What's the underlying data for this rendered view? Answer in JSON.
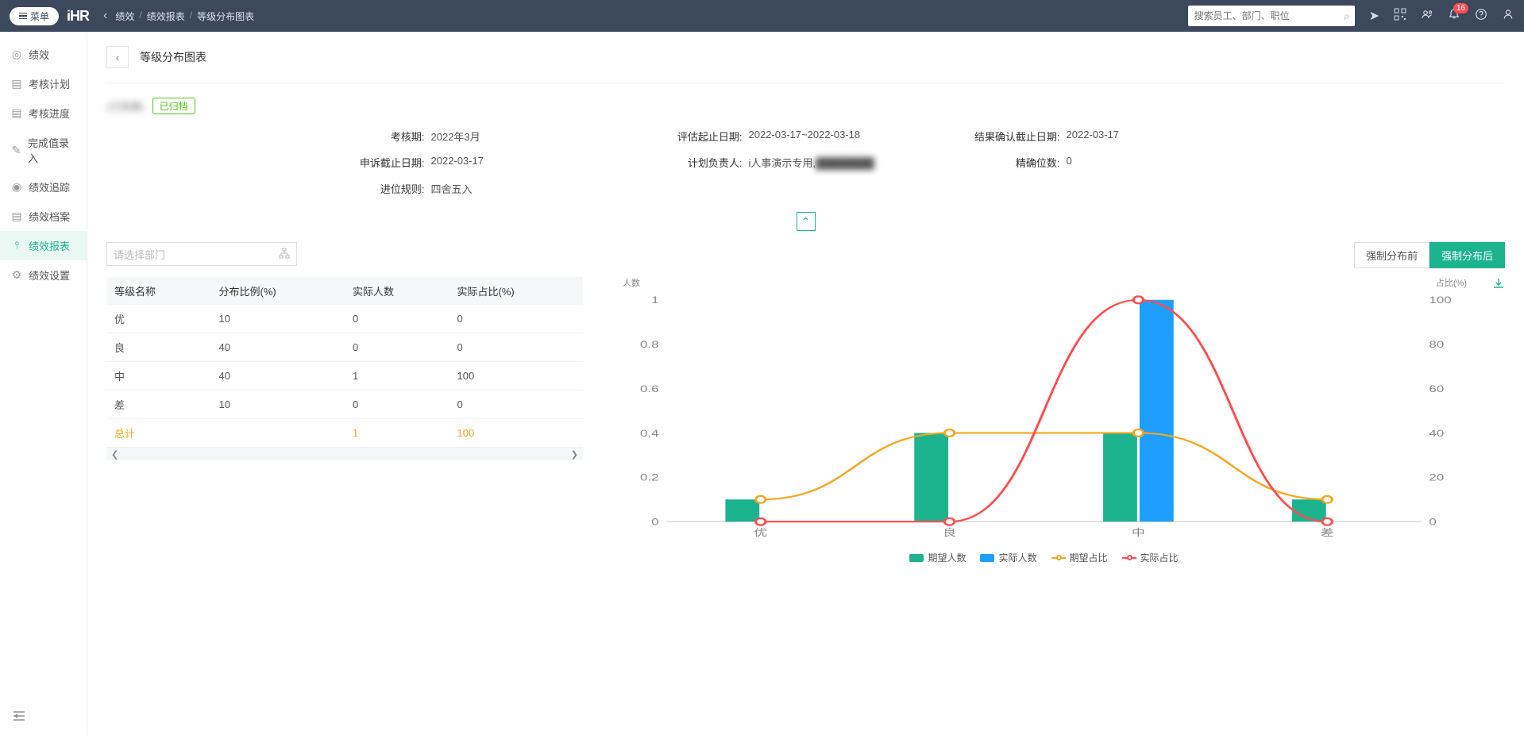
{
  "header": {
    "menu_label": "菜单",
    "logo": "iHR",
    "breadcrumb": [
      "绩效",
      "绩效报表",
      "等级分布图表"
    ],
    "search_placeholder": "搜索员工、部门、职位",
    "notif_badge": "16"
  },
  "sidebar": {
    "items": [
      {
        "icon": "◎",
        "label": "绩效"
      },
      {
        "icon": "▤",
        "label": "考核计划"
      },
      {
        "icon": "▤",
        "label": "考核进度"
      },
      {
        "icon": "✎",
        "label": "完成值录入"
      },
      {
        "icon": "◉",
        "label": "绩效追踪"
      },
      {
        "icon": "▤",
        "label": "绩效档案"
      },
      {
        "icon": "⫯",
        "label": "绩效报表"
      },
      {
        "icon": "⚙",
        "label": "绩效设置"
      }
    ],
    "active_index": 6
  },
  "page": {
    "title": "等级分布图表",
    "plan_name": "(已隐藏)",
    "archived_badge": "已归档"
  },
  "info": {
    "assess_period_label": "考核期:",
    "assess_period": "2022年3月",
    "eval_range_label": "评估起止日期:",
    "eval_range": "2022-03-17~2022-03-18",
    "confirm_deadline_label": "结果确认截止日期:",
    "confirm_deadline": "2022-03-17",
    "appeal_deadline_label": "申诉截止日期:",
    "appeal_deadline": "2022-03-17",
    "owner_label": "计划负责人:",
    "owner": "i人事演示专用,",
    "precision_label": "精确位数:",
    "precision": "0",
    "rounding_label": "进位规则:",
    "rounding": "四舍五入"
  },
  "dept_select_placeholder": "请选择部门",
  "table": {
    "headers": [
      "等级名称",
      "分布比例(%)",
      "实际人数",
      "实际占比(%)"
    ],
    "rows": [
      [
        "优",
        "10",
        "0",
        "0"
      ],
      [
        "良",
        "40",
        "0",
        "0"
      ],
      [
        "中",
        "40",
        "1",
        "100"
      ],
      [
        "差",
        "10",
        "0",
        "0"
      ]
    ],
    "total_row": [
      "总计",
      "",
      "1",
      "100"
    ]
  },
  "dist_buttons": {
    "before": "强制分布前",
    "after": "强制分布后"
  },
  "chart": {
    "y_left_label": "人数",
    "y_right_label": "占比(%)",
    "categories": [
      "优",
      "良",
      "中",
      "差"
    ],
    "y_left": {
      "min": 0,
      "max": 1,
      "ticks": [
        0,
        0.2,
        0.4,
        0.6,
        0.8,
        1
      ]
    },
    "y_right": {
      "min": 0,
      "max": 100,
      "ticks": [
        0,
        20,
        40,
        60,
        80,
        100
      ]
    },
    "series": {
      "expected_count": {
        "label": "期望人数",
        "color": "#1bb48f",
        "type": "bar",
        "values": [
          0.1,
          0.4,
          0.4,
          0.1
        ]
      },
      "actual_count": {
        "label": "实际人数",
        "color": "#1e9fff",
        "type": "bar",
        "values": [
          0,
          0,
          1,
          0
        ]
      },
      "expected_pct": {
        "label": "期望占比",
        "color": "#f5a623",
        "type": "line",
        "values": [
          10,
          40,
          40,
          10
        ]
      },
      "actual_pct": {
        "label": "实际占比",
        "color": "#ff4d4f",
        "type": "line",
        "values": [
          0,
          0,
          100,
          0
        ]
      }
    },
    "legend_order": [
      "expected_count",
      "actual_count",
      "expected_pct",
      "actual_pct"
    ],
    "plot": {
      "width_frac_per_bar": 0.18,
      "grid_color": "#eceef1",
      "axis_color": "#888",
      "font_size": 11
    }
  }
}
